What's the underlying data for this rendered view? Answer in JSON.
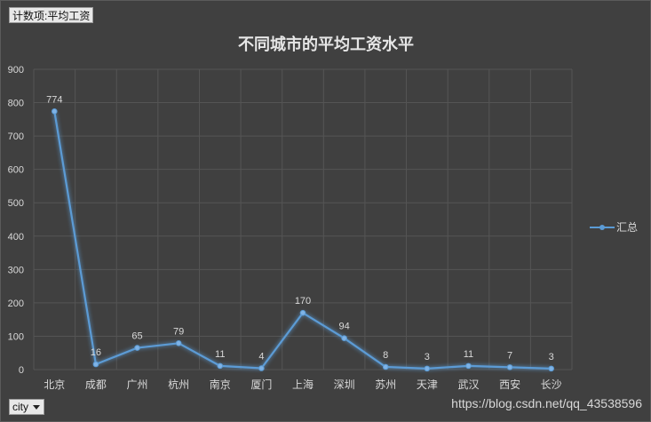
{
  "field_button_label": "计数项:平均工资",
  "axis_field_label": "city",
  "watermark": "https://blog.csdn.net/qq_43538596",
  "colors": {
    "background": "#404040",
    "line": "#5b9bd5",
    "grid": "#555555",
    "text": "#d9d9d9"
  },
  "chart_data": {
    "type": "line",
    "title": "不同城市的平均工资水平",
    "categories": [
      "北京",
      "成都",
      "广州",
      "杭州",
      "南京",
      "厦门",
      "上海",
      "深圳",
      "苏州",
      "天津",
      "武汉",
      "西安",
      "长沙"
    ],
    "series": [
      {
        "name": "汇总",
        "values": [
          774,
          16,
          65,
          79,
          11,
          4,
          170,
          94,
          8,
          3,
          11,
          7,
          3
        ]
      }
    ],
    "ylim": [
      0,
      900
    ],
    "yticks": [
      0,
      100,
      200,
      300,
      400,
      500,
      600,
      700,
      800,
      900
    ],
    "grid": true,
    "legend_position": "right"
  }
}
